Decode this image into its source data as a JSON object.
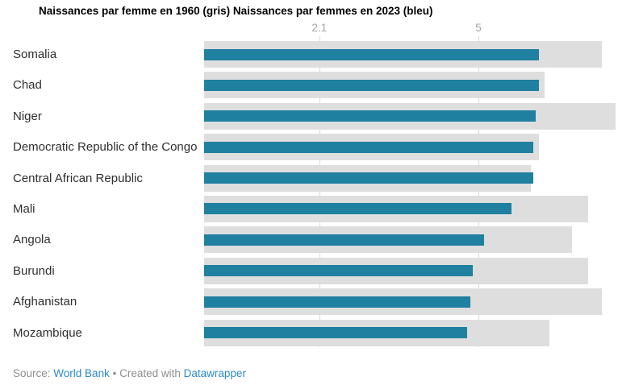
{
  "title": "Naissances par femme en 1960 (gris) Naissances par femmes en 2023 (bleu)",
  "footer": {
    "source_label": "Source:",
    "source_link_label": "World Bank",
    "separator": "•",
    "created_with_label": "Created with",
    "tool_link_label": "Datawrapper"
  },
  "colors": {
    "bar_1960_gray": "#dedede",
    "bar_2023_blue": "#1f809f",
    "gridline": "#d9d9d9",
    "axis_tick_text": "#a5a5a5",
    "category_label_text": "#2f2f2f",
    "footer_text": "#8e8e8e",
    "footer_link": "#2e8bc9"
  },
  "chart_data": {
    "type": "bar",
    "orientation": "horizontal",
    "title": "Naissances par femme en 1960 (gris) Naissances par femmes en 2023 (bleu)",
    "categories": [
      "Somalia",
      "Chad",
      "Niger",
      "Democratic Republic of the Congo",
      "Central African Republic",
      "Mali",
      "Angola",
      "Burundi",
      "Afghanistan",
      "Mozambique"
    ],
    "series": [
      {
        "name": "Naissances par femme en 1960 (gris)",
        "color": "#dedede",
        "values": [
          7.25,
          6.2,
          7.5,
          6.1,
          5.95,
          7.0,
          6.7,
          7.0,
          7.25,
          6.3
        ]
      },
      {
        "name": "Naissances par femmes en 2023 (bleu)",
        "color": "#1f809f",
        "values": [
          6.1,
          6.1,
          6.05,
          6.0,
          6.0,
          5.6,
          5.1,
          4.9,
          4.85,
          4.8
        ]
      }
    ],
    "x_ticks": [
      2.1,
      5
    ],
    "x_tick_labels": [
      "2.1",
      "5"
    ],
    "xlim": [
      0,
      8
    ],
    "grid": "vertical",
    "legend_position": "in-title",
    "xlabel": "",
    "ylabel": ""
  }
}
